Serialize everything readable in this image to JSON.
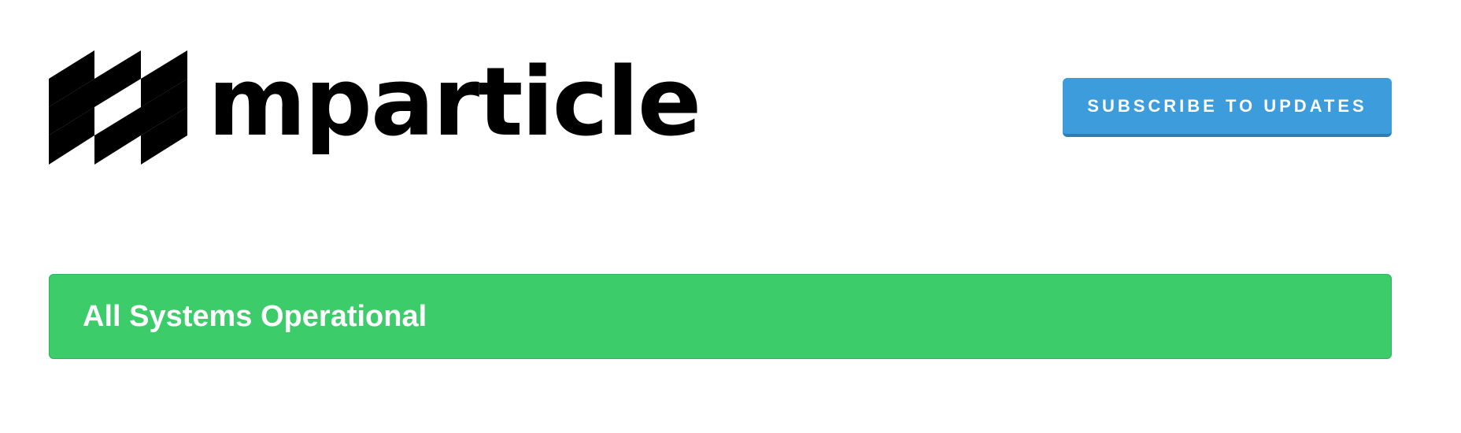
{
  "header": {
    "logo": {
      "wordmark": "mparticle",
      "icon": "mparticle-logo-icon"
    },
    "subscribe_label": "SUBSCRIBE TO UPDATES"
  },
  "status": {
    "text": "All Systems Operational",
    "color": "#3ccc6a"
  },
  "colors": {
    "accent": "#3d9ddc",
    "success": "#3ccc6a",
    "logo": "#000000",
    "background": "#ffffff"
  }
}
